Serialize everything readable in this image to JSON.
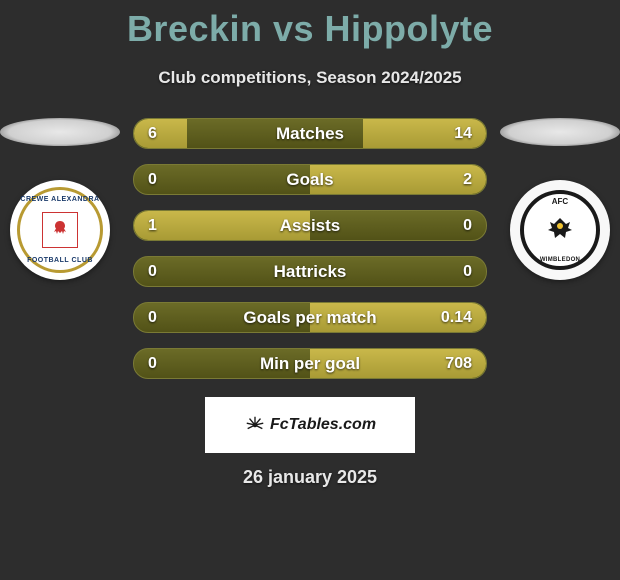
{
  "title": "Breckin vs Hippolyte",
  "subtitle": "Club competitions, Season 2024/2025",
  "crest_left": {
    "top_text": "CREWE ALEXANDRA",
    "bottom_text": "FOOTBALL CLUB"
  },
  "crest_right": {
    "top_text": "AFC",
    "bottom_text": "WIMBLEDON"
  },
  "stats": [
    {
      "label": "Matches",
      "left_val": "6",
      "right_val": "14",
      "left_fill_pct": 15,
      "right_fill_pct": 35,
      "fill_color": "#b8a93e"
    },
    {
      "label": "Goals",
      "left_val": "0",
      "right_val": "2",
      "left_fill_pct": 0,
      "right_fill_pct": 50,
      "fill_color": "#b8a93e"
    },
    {
      "label": "Assists",
      "left_val": "1",
      "right_val": "0",
      "left_fill_pct": 50,
      "right_fill_pct": 0,
      "fill_color": "#b8a93e"
    },
    {
      "label": "Hattricks",
      "left_val": "0",
      "right_val": "0",
      "left_fill_pct": 0,
      "right_fill_pct": 0,
      "fill_color": "#b8a93e"
    },
    {
      "label": "Goals per match",
      "left_val": "0",
      "right_val": "0.14",
      "left_fill_pct": 0,
      "right_fill_pct": 50,
      "fill_color": "#b8a93e"
    },
    {
      "label": "Min per goal",
      "left_val": "0",
      "right_val": "708",
      "left_fill_pct": 0,
      "right_fill_pct": 50,
      "fill_color": "#b8a93e"
    }
  ],
  "footer_brand": "FcTables.com",
  "footer_date": "26 january 2025",
  "colors": {
    "background": "#2d2d2d",
    "title_color": "#7daca9",
    "bar_bg": "#5a5a22",
    "bar_fill": "#b8a93e",
    "text_light": "#e8e8e8"
  }
}
